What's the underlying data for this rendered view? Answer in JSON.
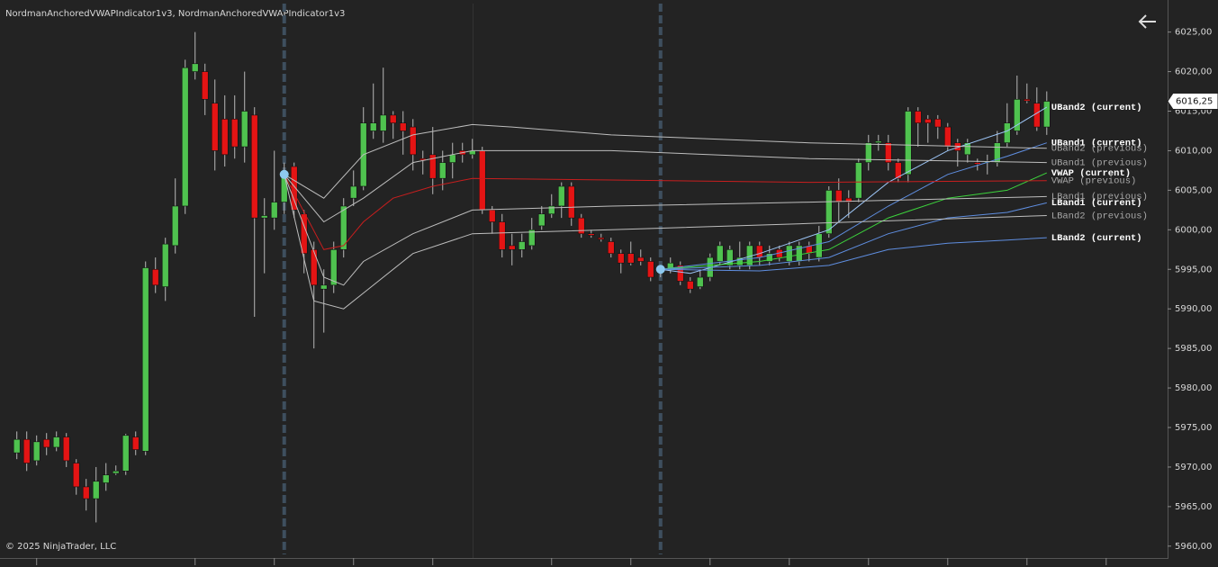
{
  "chart_data": {
    "type": "candlestick",
    "title": "NordmanAnchoredVWAPIndicator1v3, NordmanAnchoredVWAPIndicator1v3",
    "copyright": "© 2025 NinjaTrader, LLC",
    "up_color": "#4fc24f",
    "down_color": "#e41414",
    "open": [
      5971.8,
      5973.5,
      5970.8,
      5973.5,
      5972.5,
      5973.8,
      5970.5,
      5967.5,
      5966.0,
      5968.0,
      5969.2,
      5969.5,
      5973.8,
      5972.0,
      5995.0,
      5992.8,
      5998.0,
      6003.0,
      6020.0,
      6020.0,
      6016.0,
      6014.0,
      6014.0,
      6010.5,
      6014.5,
      6001.5,
      6001.5,
      6003.5,
      6008.0,
      6002.0,
      5997.5,
      5992.5,
      5993.0,
      5997.5,
      6004.0,
      6005.5,
      6012.5,
      6012.5,
      6014.5,
      6013.5,
      6013.0,
      6009.0,
      6009.5,
      6006.5,
      6008.5,
      6010.0,
      6009.5,
      6010.0,
      6002.5,
      6001.0,
      5998.0,
      5997.5,
      5998.0,
      6000.5,
      6002.0,
      6003.0,
      6005.5,
      6001.5,
      5999.5,
      5999.0,
      5998.5,
      5997.0,
      5997.0,
      5996.5,
      5996.0,
      5994.5,
      5995.0,
      5995.5,
      5993.5,
      5992.8,
      5994.0,
      5996.0,
      5995.5,
      5995.5,
      5995.5,
      5998.0,
      5996.0,
      5997.5,
      5996.0,
      5996.0,
      5998.0,
      5996.5,
      5999.5,
      6005.0,
      6004.0,
      6004.0,
      6008.5,
      6011.0,
      6011.0,
      6008.5,
      6007.0,
      6015.0,
      6014.0,
      6014.0,
      6013.0,
      6011.0,
      6009.5,
      6008.5,
      6008.5,
      6008.5,
      6011.0,
      6012.5,
      6016.5,
      6016.0,
      6013.0
    ],
    "high": [
      5974.5,
      5974.5,
      5974.0,
      5974.3,
      5974.5,
      5974.3,
      5971.0,
      5968.5,
      5970.0,
      5970.5,
      5970.2,
      5974.2,
      5974.5,
      5996.0,
      5996.5,
      5999.0,
      6006.5,
      6021.5,
      6025.0,
      6021.0,
      6019.0,
      6017.0,
      6017.0,
      6020.0,
      6015.5,
      6004.0,
      6010.0,
      6008.5,
      6008.5,
      6002.5,
      5998.5,
      5995.0,
      5998.5,
      6004.0,
      6007.5,
      6015.5,
      6018.5,
      6020.5,
      6015.0,
      6015.0,
      6014.0,
      6010.0,
      6013.0,
      6010.0,
      6011.0,
      6011.0,
      6011.5,
      6010.5,
      6003.0,
      6002.0,
      5999.5,
      5999.5,
      6001.5,
      6003.0,
      6004.5,
      6006.0,
      6006.0,
      6002.0,
      6000.0,
      5999.5,
      5999.0,
      5997.5,
      5998.5,
      5997.5,
      5996.5,
      5995.5,
      5996.5,
      5996.0,
      5994.0,
      5995.0,
      5997.0,
      5998.5,
      5998.0,
      5998.5,
      5998.5,
      5998.5,
      5998.0,
      5998.0,
      5998.5,
      5998.5,
      5998.5,
      6000.5,
      6005.5,
      6006.5,
      6005.0,
      6009.0,
      6012.0,
      6012.0,
      6012.0,
      6009.0,
      6015.5,
      6015.5,
      6014.5,
      6014.5,
      6013.5,
      6011.5,
      6011.5,
      6009.0,
      6009.5,
      6012.5,
      6016.0,
      6019.5,
      6018.5,
      6018.0,
      6017.5
    ],
    "low": [
      5971.0,
      5969.5,
      5970.2,
      5971.5,
      5972.0,
      5970.0,
      5966.5,
      5964.5,
      5963.0,
      5967.0,
      5969.0,
      5969.0,
      5971.5,
      5971.5,
      5992.0,
      5991.0,
      5997.0,
      6002.0,
      6019.0,
      6014.5,
      6007.5,
      6008.0,
      6009.0,
      6008.5,
      5989.0,
      5994.5,
      6000.0,
      6002.0,
      6001.5,
      5994.5,
      5985.0,
      5987.0,
      5992.0,
      5996.5,
      6003.0,
      6005.0,
      6011.5,
      6011.0,
      6011.5,
      6009.5,
      6007.5,
      6007.0,
      6004.5,
      6005.0,
      6006.5,
      6008.5,
      6009.0,
      6002.0,
      5999.5,
      5996.5,
      5995.5,
      5996.5,
      5997.5,
      6000.0,
      6001.5,
      6001.5,
      6000.5,
      5999.0,
      5999.0,
      5998.5,
      5996.5,
      5994.5,
      5995.5,
      5995.5,
      5993.5,
      5994.0,
      5994.5,
      5993.0,
      5992.0,
      5992.5,
      5993.5,
      5995.5,
      5995.0,
      5995.0,
      5995.0,
      5995.5,
      5995.5,
      5996.0,
      5995.5,
      5995.5,
      5996.0,
      5996.0,
      5999.0,
      6001.0,
      6001.5,
      6003.5,
      6007.5,
      6010.0,
      6007.5,
      6006.0,
      6006.0,
      6010.5,
      6011.0,
      6011.5,
      6010.0,
      6008.0,
      6008.5,
      6007.5,
      6007.0,
      6008.0,
      6010.5,
      6012.0,
      6016.0,
      6012.5,
      6012.0
    ],
    "close": [
      5973.5,
      5970.5,
      5973.2,
      5972.5,
      5973.8,
      5970.8,
      5967.5,
      5966.0,
      5968.2,
      5969.0,
      5969.5,
      5974.0,
      5972.2,
      5995.2,
      5993.0,
      5998.2,
      6003.0,
      6020.5,
      6021.0,
      6016.5,
      6010.0,
      6009.5,
      6010.5,
      6015.0,
      6001.5,
      6001.8,
      6003.5,
      6007.0,
      6002.5,
      5997.0,
      5993.0,
      5993.0,
      5997.5,
      6003.0,
      6005.5,
      6013.5,
      6013.5,
      6014.5,
      6013.5,
      6012.5,
      6009.5,
      6008.8,
      6006.5,
      6008.5,
      6009.5,
      6009.5,
      6010.0,
      6002.5,
      6001.0,
      5997.5,
      5997.5,
      5998.5,
      6000.0,
      6002.0,
      6003.0,
      6005.5,
      6001.5,
      5999.5,
      5999.3,
      5998.8,
      5997.0,
      5995.8,
      5995.8,
      5996.0,
      5994.0,
      5995.0,
      5995.8,
      5993.5,
      5992.5,
      5994.0,
      5996.5,
      5998.0,
      5997.5,
      5996.5,
      5998.0,
      5996.5,
      5997.0,
      5996.5,
      5998.0,
      5998.0,
      5997.0,
      5999.5,
      6005.0,
      6003.5,
      6003.5,
      6008.5,
      6011.0,
      6011.2,
      6008.5,
      6006.5,
      6015.0,
      6013.5,
      6013.5,
      6013.0,
      6010.5,
      6010.0,
      6011.0,
      6008.3,
      6008.7,
      6011.0,
      6013.5,
      6016.5,
      6016.3,
      6013.0,
      6016.25
    ],
    "anchors": {
      "x": [
        27,
        65
      ],
      "values": [
        6007.0,
        5995.0
      ],
      "color": "#8ec9f0"
    },
    "series": [
      {
        "name": "UBand2 (current)",
        "color": "#9cc4f5",
        "label_color": "#ffffff",
        "x": [
          65,
          68,
          75,
          82,
          88,
          94,
          100,
          104
        ],
        "values": [
          5995,
          5994.5,
          5997,
          6000,
          6006,
          6010,
          6012.5,
          6015.5
        ]
      },
      {
        "name": "UBand1 (current)",
        "color": "#5f8ee0",
        "label_color": "#ffffff",
        "x": [
          65,
          75,
          82,
          88,
          94,
          100,
          104
        ],
        "values": [
          5995,
          5996.5,
          5998.5,
          6003,
          6007,
          6009.3,
          6011
        ]
      },
      {
        "name": "UBand2 (previous)",
        "color": "#bdbdbd",
        "label_color": "#a8a8a8",
        "x": [
          27,
          31,
          35,
          40,
          46,
          50,
          60,
          80,
          104
        ],
        "values": [
          6007,
          6004,
          6009.5,
          6012,
          6013.3,
          6013,
          6012,
          6011,
          6010.3
        ]
      },
      {
        "name": "UBand1 (previous)",
        "color": "#bdbdbd",
        "label_color": "#a8a8a8",
        "x": [
          27,
          31,
          35,
          40,
          46,
          60,
          80,
          104
        ],
        "values": [
          6007,
          6001,
          6004,
          6008.5,
          6010,
          6010,
          6009,
          6008.5
        ]
      },
      {
        "name": "VWAP (current)",
        "color": "#3cd23c",
        "label_color": "#ffffff",
        "x": [
          65,
          75,
          82,
          88,
          94,
          100,
          104
        ],
        "values": [
          5995,
          5996,
          5997.5,
          6001.5,
          6004,
          6005,
          6007.2
        ]
      },
      {
        "name": "VWAP (previous)",
        "color": "#c81e1e",
        "label_color": "#a8a8a8",
        "x": [
          27,
          31,
          33,
          35,
          38,
          42,
          46,
          60,
          80,
          104
        ],
        "values": [
          6007,
          5997.5,
          5998,
          6001,
          6004,
          6005.5,
          6006.5,
          6006.3,
          6006,
          6006.2
        ]
      },
      {
        "name": "LBand1 (previous)",
        "color": "#bdbdbd",
        "label_color": "#a8a8a8",
        "x": [
          27,
          31,
          33,
          35,
          40,
          46,
          60,
          80,
          104
        ],
        "values": [
          6007,
          5994,
          5993,
          5996,
          5999.5,
          6002.5,
          6003,
          6003.5,
          6004.2
        ]
      },
      {
        "name": "LBand1 (current)",
        "color": "#5f8ee0",
        "label_color": "#ffffff",
        "x": [
          65,
          75,
          82,
          88,
          94,
          100,
          104
        ],
        "values": [
          5995,
          5995.5,
          5996.5,
          5999.5,
          6001.5,
          6002.2,
          6003.4
        ]
      },
      {
        "name": "LBand2 (previous)",
        "color": "#bdbdbd",
        "label_color": "#a8a8a8",
        "x": [
          27,
          30,
          33,
          35,
          40,
          46,
          60,
          80,
          104
        ],
        "values": [
          6007,
          5991,
          5990,
          5992,
          5997,
          5999.5,
          6000,
          6000.8,
          6001.8
        ]
      },
      {
        "name": "LBand2 (current)",
        "color": "#5f8ee0",
        "label_color": "#ffffff",
        "x": [
          65,
          75,
          82,
          88,
          94,
          100,
          104
        ],
        "values": [
          5995,
          5994.8,
          5995.5,
          5997.5,
          5998.3,
          5998.7,
          5999
        ]
      }
    ],
    "last_price": {
      "value": 6016.25,
      "label": "6016,25"
    },
    "xlim": [
      -1.7,
      116.2
    ],
    "ylim": [
      5958.5,
      6028.6
    ],
    "xticks": [
      2,
      18,
      26,
      34,
      42,
      54,
      62,
      70,
      78,
      86,
      94,
      102,
      110
    ],
    "yticks": [
      {
        "value": 5960,
        "label": "5960,00"
      },
      {
        "value": 5965,
        "label": "5965,00"
      },
      {
        "value": 5970,
        "label": "5970,00"
      },
      {
        "value": 5975,
        "label": "5975,00"
      },
      {
        "value": 5980,
        "label": "5980,00"
      },
      {
        "value": 5985,
        "label": "5985,00"
      },
      {
        "value": 5990,
        "label": "5990,00"
      },
      {
        "value": 5995,
        "label": "5995,00"
      },
      {
        "value": 6000,
        "label": "6000,00"
      },
      {
        "value": 6005,
        "label": "6005,00"
      },
      {
        "value": 6010,
        "label": "6010,00"
      },
      {
        "value": 6015,
        "label": "6015,00"
      },
      {
        "value": 6020,
        "label": "6020,00"
      },
      {
        "value": 6025,
        "label": "6025,00"
      }
    ]
  }
}
